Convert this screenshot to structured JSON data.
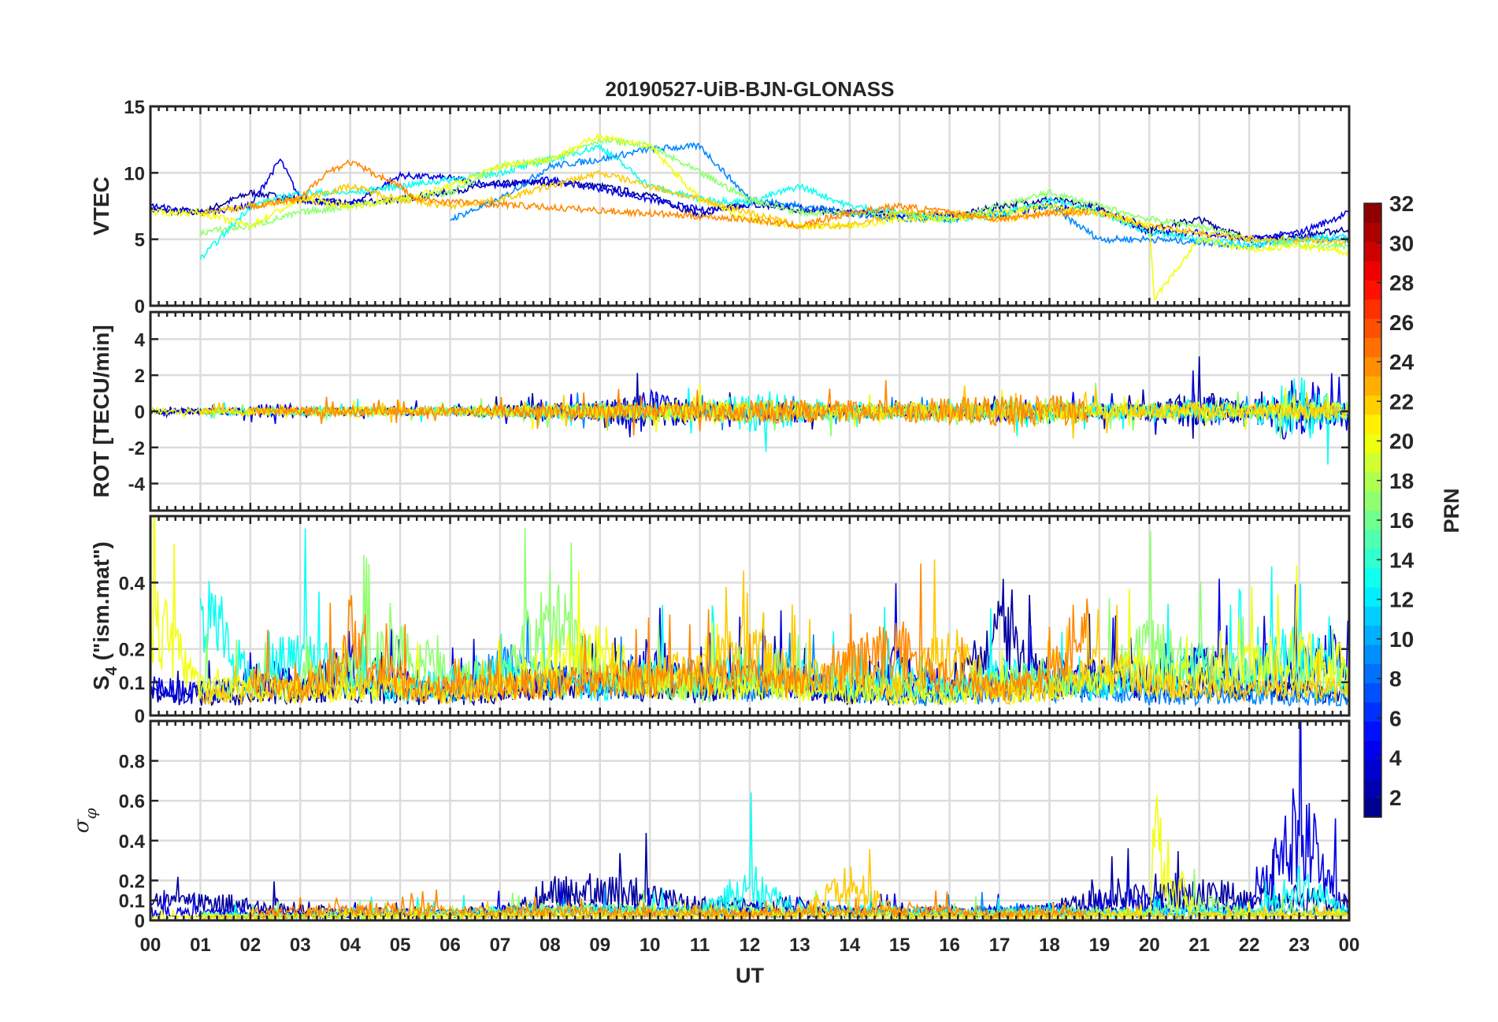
{
  "chart_data": {
    "type": "line",
    "title": "20190527-UiB-BJN-GLONASS",
    "xlabel": "UT",
    "xlim": [
      0,
      24
    ],
    "xtick_labels": [
      "00",
      "01",
      "02",
      "03",
      "04",
      "05",
      "06",
      "07",
      "08",
      "09",
      "10",
      "11",
      "12",
      "13",
      "14",
      "15",
      "16",
      "17",
      "18",
      "19",
      "20",
      "21",
      "22",
      "23",
      "00"
    ],
    "grid": true,
    "colorbar": {
      "label": "PRN",
      "range": [
        1,
        32
      ],
      "tick_labels": [
        "2",
        "4",
        "6",
        "8",
        "10",
        "12",
        "14",
        "16",
        "18",
        "20",
        "22",
        "24",
        "26",
        "28",
        "30",
        "32"
      ],
      "colormap": "jet",
      "placement": "right"
    },
    "panels": [
      {
        "id": "vtec",
        "ylabel": "VTEC",
        "ylim": [
          0,
          15
        ],
        "yticks": [
          0,
          5,
          10,
          15
        ],
        "ytick_labels": [
          "0",
          "5",
          "10",
          "15"
        ]
      },
      {
        "id": "rot",
        "ylabel": "ROT [TECU/min]",
        "ylim": [
          -5.5,
          5.5
        ],
        "yticks": [
          -4,
          -2,
          0,
          2,
          4
        ],
        "ytick_labels": [
          "-4",
          "-2",
          "0",
          "2",
          "4"
        ]
      },
      {
        "id": "s4",
        "ylabel": "S4 (\"ism.mat\")",
        "ylabel_main": "S",
        "ylabel_sub": "4",
        "ylabel_rest": " (\"ism.mat\")",
        "ylim": [
          0,
          0.6
        ],
        "yticks": [
          0,
          0.1,
          0.2,
          0.4
        ],
        "ytick_labels": [
          "0",
          "0.1",
          "0.2",
          "0.4"
        ]
      },
      {
        "id": "sigma",
        "ylabel": "σφ",
        "ylabel_main": "σ",
        "ylabel_sub": "φ",
        "ylim": [
          0,
          1
        ],
        "yticks": [
          0,
          0.1,
          0.2,
          0.4,
          0.6,
          0.8
        ],
        "ytick_labels": [
          "0",
          "0.1",
          "0.2",
          "0.4",
          "0.6",
          "0.8"
        ]
      }
    ],
    "series": [
      {
        "prn": 2,
        "x": [
          0,
          1,
          2,
          3,
          4,
          5,
          6,
          7,
          8,
          9,
          10,
          11,
          12,
          13,
          14,
          15,
          16,
          17,
          18,
          19,
          20,
          21,
          22,
          23,
          24
        ],
        "vtec": [
          7.2,
          7,
          8.5,
          8,
          7.7,
          8,
          8.6,
          9.2,
          9.3,
          9,
          8.3,
          6.8,
          7.8,
          7.2,
          7,
          6.8,
          6.6,
          7.5,
          8,
          7.4,
          5.8,
          6.5,
          5,
          5.2,
          5.8
        ],
        "rot_amp": [
          0.2,
          0.2,
          0.2,
          0.2,
          0.2,
          0.2,
          0.3,
          0.4,
          0.6,
          0.8,
          1.2,
          0.8,
          0.6,
          0.5,
          0.4,
          0.4,
          0.4,
          0.6,
          0.5,
          0.5,
          0.6,
          1.5,
          0.5,
          1,
          0.4
        ],
        "s4": [
          0.06,
          0.06,
          0.06,
          0.07,
          0.08,
          0.06,
          0.06,
          0.07,
          0.08,
          0.1,
          0.08,
          0.07,
          0.09,
          0.08,
          0.06,
          0.06,
          0.06,
          0.25,
          0.08,
          0.12,
          0.07,
          0.1,
          0.07,
          0.08,
          0.06
        ],
        "sigma": [
          0.1,
          0.1,
          0.08,
          0.07,
          0.03,
          0.03,
          0.03,
          0.04,
          0.15,
          0.16,
          0.14,
          0.08,
          0.08,
          0.08,
          0.04,
          0.04,
          0.04,
          0.04,
          0.06,
          0.12,
          0.12,
          0.15,
          0.12,
          0.12,
          0.08
        ]
      },
      {
        "prn": 4,
        "x": [
          0,
          1,
          2,
          2.6,
          3,
          4,
          5,
          6,
          7,
          8,
          9,
          10,
          11,
          12,
          13,
          14,
          15,
          16,
          17,
          18,
          19,
          20,
          21,
          22,
          23,
          24
        ],
        "vtec": [
          7.5,
          7,
          7.5,
          11,
          8,
          7.6,
          9.8,
          9.6,
          9,
          9.5,
          8.8,
          8,
          7.2,
          7.6,
          7.4,
          7,
          6.8,
          6.8,
          6.8,
          7.5,
          7.2,
          5.5,
          5.5,
          5,
          5.5,
          7
        ],
        "rot_amp": [
          0.2,
          0.2,
          0.3,
          0.8,
          0.3,
          0.3,
          0.3,
          0.3,
          0.3,
          0.5,
          0.7,
          1.5,
          0.6,
          0.6,
          0.8,
          0.4,
          0.4,
          0.4,
          0.7,
          0.6,
          0.5,
          0.6,
          1.2,
          0.6,
          2.5,
          0.5
        ],
        "s4": [
          0.08,
          0.07,
          0.1,
          0.12,
          0.08,
          0.15,
          0.1,
          0.08,
          0.09,
          0.1,
          0.1,
          0.15,
          0.08,
          0.12,
          0.1,
          0.07,
          0.15,
          0.08,
          0.1,
          0.12,
          0.1,
          0.12,
          0.15,
          0.12,
          0.15,
          0.2
        ],
        "sigma": [
          0.05,
          0.04,
          0.04,
          0.03,
          0.03,
          0.05,
          0.04,
          0.04,
          0.05,
          0.06,
          0.06,
          0.05,
          0.05,
          0.05,
          0.05,
          0.05,
          0.05,
          0.05,
          0.05,
          0.06,
          0.06,
          0.1,
          0.06,
          0.06,
          0.5,
          0.06
        ]
      },
      {
        "prn": 9,
        "x": [
          6,
          7,
          8,
          9,
          10,
          11,
          12,
          13,
          14,
          15,
          16,
          17,
          18,
          19,
          20,
          21,
          22,
          23,
          24
        ],
        "vtec": [
          6.5,
          8,
          10.5,
          11,
          11.8,
          12,
          8,
          7.5,
          7,
          6.5,
          6.5,
          7,
          7.5,
          5,
          5,
          4.8,
          4.5,
          5,
          5
        ],
        "rot_amp": [
          0.2,
          0.3,
          0.5,
          0.6,
          0.5,
          0.5,
          0.5,
          0.5,
          0.4,
          0.4,
          0.4,
          0.5,
          0.5,
          0.4,
          0.4,
          0.4,
          0.4,
          0.5,
          0.4
        ],
        "s4": [
          0.06,
          0.15,
          0.12,
          0.08,
          0.1,
          0.12,
          0.08,
          0.1,
          0.07,
          0.06,
          0.06,
          0.07,
          0.08,
          0.07,
          0.06,
          0.06,
          0.06,
          0.05,
          0.05
        ],
        "sigma": [
          0.03,
          0.04,
          0.05,
          0.05,
          0.05,
          0.05,
          0.05,
          0.05,
          0.04,
          0.04,
          0.04,
          0.05,
          0.05,
          0.04,
          0.04,
          0.04,
          0.04,
          0.04,
          0.04
        ]
      },
      {
        "prn": 13,
        "x": [
          1,
          2,
          3,
          4,
          5,
          6,
          7,
          8,
          9,
          10,
          11,
          12,
          13,
          14,
          15,
          16,
          17,
          18,
          19,
          20,
          21,
          22,
          23,
          24
        ],
        "vtec": [
          3.5,
          7.5,
          8.5,
          8.5,
          9,
          9.5,
          10,
          11,
          12,
          9,
          8,
          7.8,
          9,
          7.5,
          7,
          6.5,
          6.8,
          8,
          7,
          5.5,
          5,
          4.5,
          5,
          5.2
        ],
        "rot_amp": [
          0.3,
          0.3,
          0.3,
          0.4,
          0.3,
          0.3,
          0.4,
          0.5,
          0.6,
          0.7,
          0.6,
          1.5,
          1,
          0.7,
          0.5,
          0.5,
          0.6,
          0.7,
          0.5,
          0.5,
          0.8,
          0.5,
          2.5,
          0.5
        ],
        "s4": [
          0.35,
          0.1,
          0.2,
          0.1,
          0.08,
          0.1,
          0.12,
          0.1,
          0.08,
          0.12,
          0.1,
          0.15,
          0.12,
          0.1,
          0.12,
          0.08,
          0.12,
          0.1,
          0.08,
          0.1,
          0.15,
          0.12,
          0.2,
          0.1
        ],
        "sigma": [
          0.03,
          0.03,
          0.03,
          0.04,
          0.04,
          0.04,
          0.05,
          0.05,
          0.05,
          0.05,
          0.05,
          0.2,
          0.05,
          0.05,
          0.05,
          0.04,
          0.04,
          0.04,
          0.04,
          0.04,
          0.05,
          0.04,
          0.2,
          0.04
        ]
      },
      {
        "prn": 17,
        "x": [
          1,
          2,
          3,
          4,
          5,
          6,
          7,
          8,
          9,
          10,
          11,
          12,
          13,
          14,
          15,
          16,
          17,
          18,
          19,
          20,
          21,
          22,
          23,
          24
        ],
        "vtec": [
          5.5,
          6,
          7,
          7.5,
          8,
          8.5,
          10.5,
          11,
          12.5,
          12,
          10,
          8,
          7,
          7,
          7,
          6.5,
          7.5,
          8.5,
          7.5,
          6.5,
          6,
          5,
          4.5,
          4.5
        ],
        "rot_amp": [
          0.2,
          0.2,
          0.3,
          0.3,
          0.3,
          0.3,
          0.4,
          0.5,
          0.6,
          0.6,
          0.6,
          0.8,
          0.7,
          0.6,
          0.6,
          0.8,
          1,
          1,
          0.8,
          0.7,
          0.8,
          0.6,
          0.8,
          0.6
        ],
        "s4": [
          0.08,
          0.1,
          0.08,
          0.15,
          0.2,
          0.12,
          0.1,
          0.3,
          0.12,
          0.1,
          0.08,
          0.1,
          0.1,
          0.08,
          0.08,
          0.07,
          0.1,
          0.12,
          0.1,
          0.2,
          0.15,
          0.12,
          0.1,
          0.1
        ],
        "sigma": [
          0.03,
          0.03,
          0.03,
          0.04,
          0.04,
          0.04,
          0.05,
          0.06,
          0.06,
          0.05,
          0.05,
          0.05,
          0.05,
          0.04,
          0.04,
          0.04,
          0.04,
          0.05,
          0.05,
          0.04,
          0.1,
          0.04,
          0.04,
          0.04
        ]
      },
      {
        "prn": 20,
        "x": [
          0,
          1,
          2,
          3,
          4,
          5,
          6,
          7,
          8,
          9,
          10,
          11,
          12,
          13,
          14,
          15,
          16,
          17,
          18,
          19,
          20,
          20.1,
          21,
          22,
          23,
          24
        ],
        "vtec": [
          7,
          7,
          6,
          8,
          7.5,
          8,
          9,
          10.5,
          11,
          12.8,
          12,
          8,
          6.5,
          6,
          6,
          6.5,
          6.5,
          7,
          7.5,
          7,
          6,
          0.5,
          5,
          4.2,
          4.5,
          4
        ],
        "rot_amp": [
          0.2,
          0.2,
          0.2,
          0.2,
          0.3,
          0.3,
          0.3,
          0.4,
          0.5,
          0.6,
          0.7,
          1,
          0.7,
          0.6,
          0.5,
          0.5,
          0.5,
          0.6,
          0.6,
          0.5,
          0.5,
          0.5,
          0.7,
          0.5,
          0.7,
          0.6
        ],
        "s4": [
          0.3,
          0.08,
          0.08,
          0.07,
          0.08,
          0.08,
          0.07,
          0.08,
          0.15,
          0.2,
          0.08,
          0.1,
          0.08,
          0.08,
          0.07,
          0.06,
          0.06,
          0.07,
          0.08,
          0.1,
          0.15,
          0.1,
          0.12,
          0.15,
          0.18,
          0.15
        ],
        "sigma": [
          0.02,
          0.02,
          0.02,
          0.02,
          0.02,
          0.02,
          0.02,
          0.03,
          0.03,
          0.03,
          0.03,
          0.03,
          0.03,
          0.03,
          0.03,
          0.02,
          0.02,
          0.02,
          0.02,
          0.03,
          0.03,
          0.4,
          0.03,
          0.03,
          0.03,
          0.03
        ]
      },
      {
        "prn": 22,
        "x": [
          1,
          2,
          3,
          4,
          5,
          6,
          7,
          8,
          9,
          10,
          11,
          12,
          13,
          14,
          15,
          16,
          17,
          18,
          19,
          20,
          21,
          22,
          23,
          24
        ],
        "vtec": [
          7,
          7.5,
          8,
          9,
          8,
          7.5,
          8,
          9,
          10,
          9,
          8,
          7,
          6,
          6,
          7,
          7,
          6.5,
          7,
          7,
          6,
          5.5,
          5,
          5,
          4.8
        ],
        "rot_amp": [
          0.2,
          0.3,
          0.3,
          0.4,
          0.3,
          0.3,
          0.3,
          0.4,
          0.5,
          0.5,
          0.6,
          0.8,
          0.8,
          0.6,
          0.6,
          0.7,
          0.8,
          0.8,
          0.6,
          0.5,
          0.6,
          0.5,
          0.6,
          0.5
        ],
        "s4": [
          0.06,
          0.07,
          0.08,
          0.1,
          0.08,
          0.07,
          0.08,
          0.1,
          0.1,
          0.12,
          0.15,
          0.2,
          0.1,
          0.15,
          0.08,
          0.2,
          0.06,
          0.08,
          0.15,
          0.1,
          0.08,
          0.07,
          0.08,
          0.08
        ],
        "sigma": [
          0.02,
          0.02,
          0.02,
          0.03,
          0.03,
          0.03,
          0.03,
          0.03,
          0.03,
          0.03,
          0.03,
          0.03,
          0.03,
          0.2,
          0.03,
          0.03,
          0.03,
          0.03,
          0.03,
          0.03,
          0.03,
          0.03,
          0.03,
          0.03
        ]
      },
      {
        "prn": 24,
        "x": [
          2,
          3,
          3.5,
          4,
          5,
          5.3,
          12,
          13,
          14,
          15,
          16,
          17,
          18,
          18.8
        ],
        "vtec": [
          7.5,
          8,
          10,
          10.8,
          9,
          8,
          6.5,
          6,
          7,
          7.5,
          7,
          6.5,
          7,
          7
        ],
        "rot_amp": [
          0.3,
          0.3,
          0.4,
          0.4,
          0.3,
          0.3,
          0.8,
          0.9,
          0.8,
          0.8,
          1,
          1.2,
          1.2,
          0.8
        ],
        "s4": [
          0.1,
          0.08,
          0.1,
          0.25,
          0.1,
          0.08,
          0.12,
          0.1,
          0.15,
          0.2,
          0.1,
          0.08,
          0.12,
          0.3
        ],
        "sigma": [
          0.04,
          0.05,
          0.06,
          0.07,
          0.06,
          0.05,
          0.04,
          0.04,
          0.05,
          0.05,
          0.05,
          0.04,
          0.04,
          0.04
        ]
      }
    ]
  }
}
